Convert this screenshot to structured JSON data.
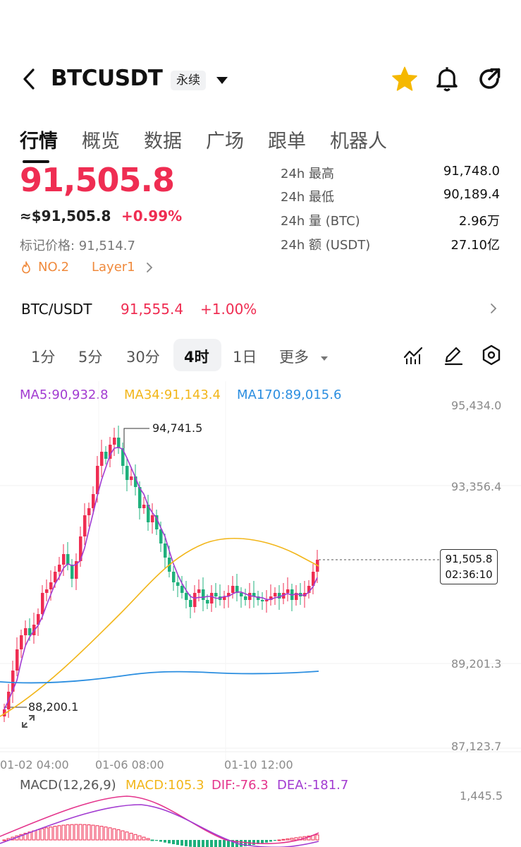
{
  "header": {
    "symbol": "BTCUSDT",
    "contract_badge": "永续",
    "icons": [
      "back-icon",
      "dropdown-caret-icon",
      "star-icon",
      "bell-icon",
      "share-icon"
    ],
    "star_color": "#f5b800"
  },
  "tabs": [
    {
      "label": "行情",
      "active": true
    },
    {
      "label": "概览"
    },
    {
      "label": "数据"
    },
    {
      "label": "广场"
    },
    {
      "label": "跟单"
    },
    {
      "label": "机器人"
    }
  ],
  "price": {
    "last": "91,505.8",
    "usd_approx": "≈$91,505.8",
    "change_pct": "+0.99%",
    "mark_label": "标记价格: 91,514.7",
    "rank_tag": "NO.2",
    "category_tag": "Layer1"
  },
  "stats": [
    {
      "label": "24h  最高",
      "value": "91,748.0"
    },
    {
      "label": "24h  最低",
      "value": "90,189.4"
    },
    {
      "label": "24h  量 (BTC)",
      "value": "2.96万"
    },
    {
      "label": "24h  额 (USDT)",
      "value": "27.10亿"
    }
  ],
  "spot": {
    "pair": "BTC/USDT",
    "price": "91,555.4",
    "change": "+1.00%"
  },
  "intervals": [
    {
      "label": "1分"
    },
    {
      "label": "5分"
    },
    {
      "label": "30分"
    },
    {
      "label": "4时",
      "active": true
    },
    {
      "label": "1日"
    },
    {
      "label": "更多"
    }
  ],
  "chart": {
    "ma5": "MA5:90,932.8",
    "ma34": "MA34:91,143.4",
    "ma170": "MA170:89,015.6",
    "y_ticks": [
      "95,434.0",
      "93,356.4",
      "89,201.3",
      "87,123.7"
    ],
    "x_ticks": [
      "01-02 04:00",
      "01-06 08:00",
      "01-10 12:00"
    ],
    "high_label": "94,741.5",
    "low_label": "88,200.1",
    "last_price": "91,505.8",
    "countdown": "02:36:10",
    "macd_title": "MACD(12,26,9)",
    "macd_val": "MACD:105.3",
    "dif": "DIF:-76.3",
    "dea": "DEA:-181.7",
    "macd_tick": "1,445.5",
    "up_color": "#ef2d52",
    "down_color": "#1fb07c",
    "ma5_color": "#a23bd1",
    "ma34_color": "#f2b61a",
    "ma170_color": "#2b8ee0"
  }
}
